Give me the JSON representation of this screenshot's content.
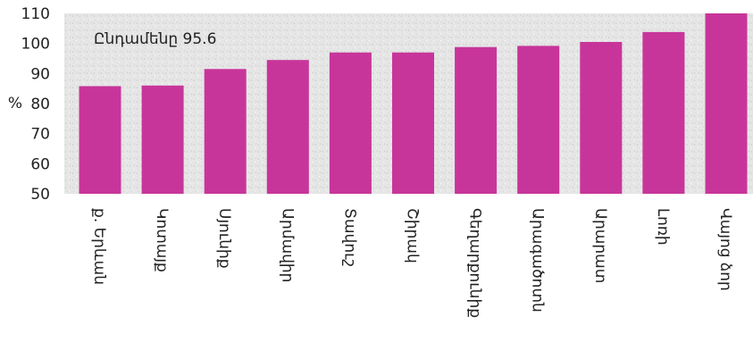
{
  "chart_data": {
    "type": "bar",
    "annotation": "Ընդամենը 95.6",
    "ylabel": "%",
    "ylim": [
      50,
      110
    ],
    "yticks": [
      50,
      60,
      70,
      80,
      90,
      100,
      110
    ],
    "categories": [
      "ք. Երևան",
      "Կոտայք",
      "Սյունիք",
      "Արմավիր",
      "Տավուշ",
      "Շիրակ",
      "Գեղարքունիք",
      "Արագածոտն",
      "Արարատ",
      "Լոռի",
      "Վայոց ձոր"
    ],
    "values": [
      85.8,
      86.0,
      91.5,
      94.5,
      97.0,
      97.0,
      98.8,
      99.2,
      100.5,
      103.8,
      110.0
    ],
    "bar_color": "#c8359a",
    "plot_background": "#e4e4e4"
  }
}
